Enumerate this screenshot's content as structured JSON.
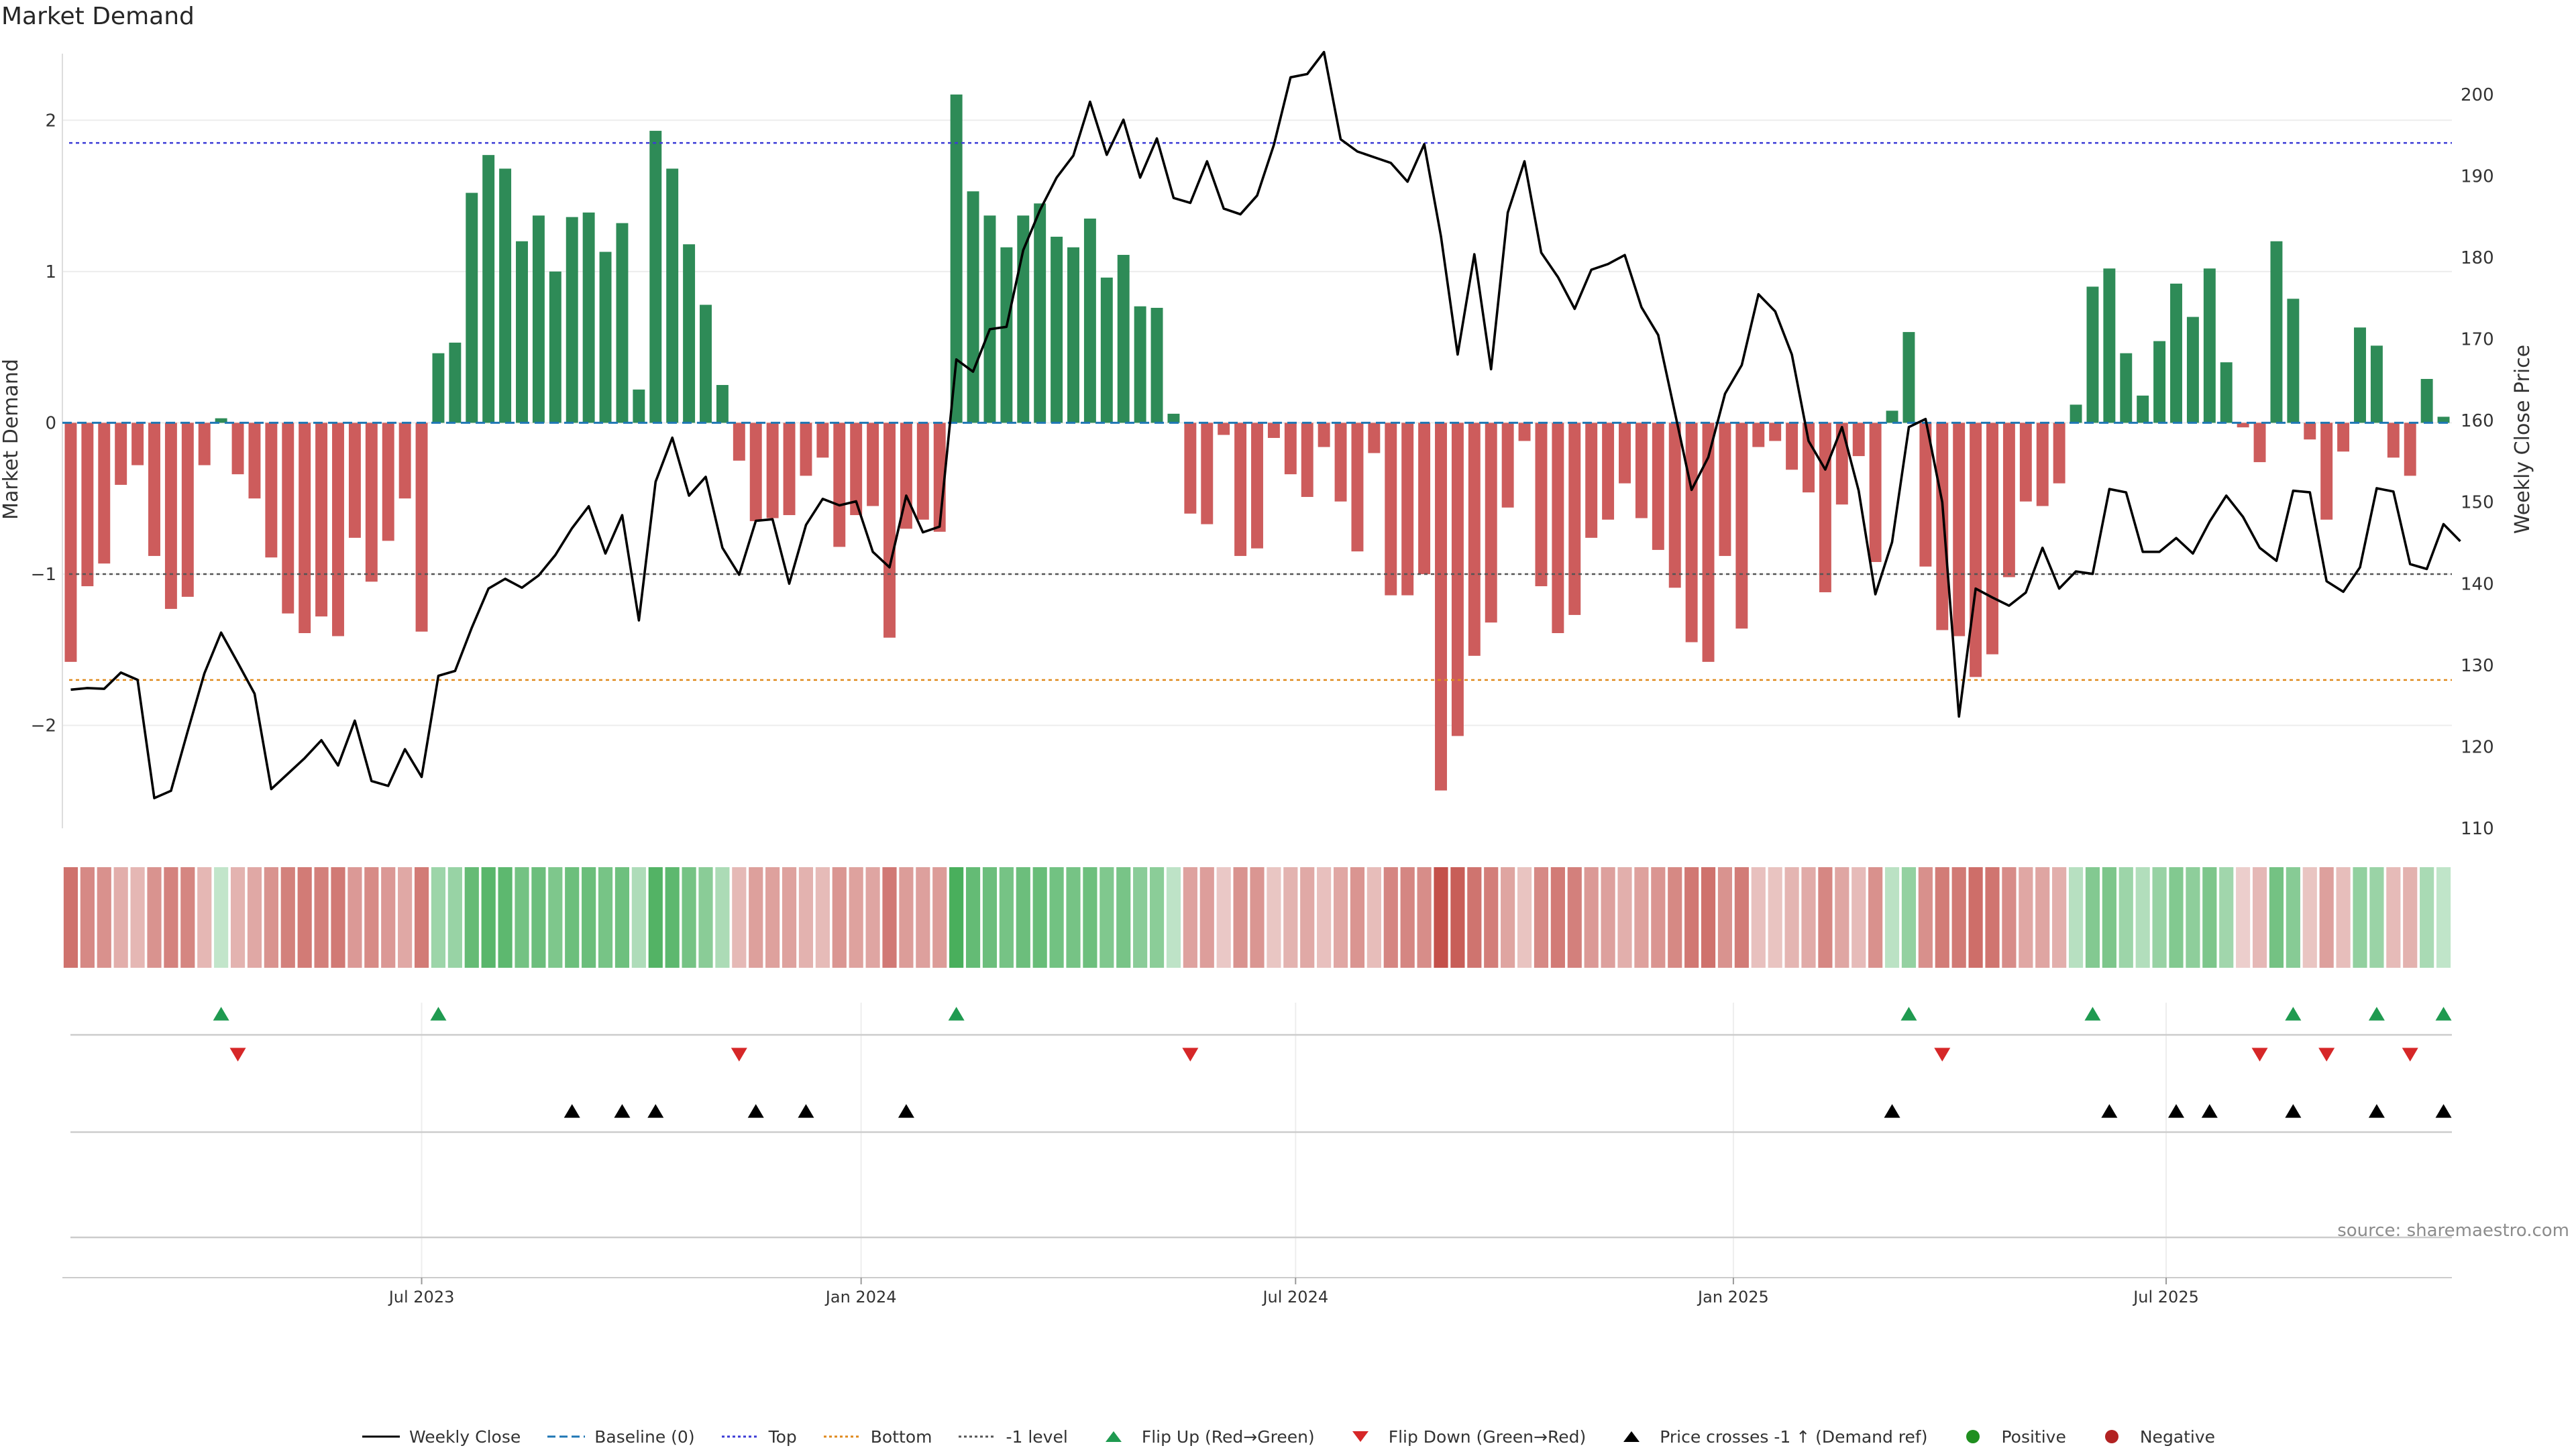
{
  "header": {
    "title": "Market Demand",
    "source": "source: sharemaestro.com"
  },
  "colors": {
    "positive": "#2e8b57",
    "negative": "#cd5c5c",
    "price": "#000000",
    "top_line": "#3b3bd6",
    "bottom_line": "#e08a1e",
    "minus1_line": "#555555",
    "flip_up": "#1f9a50",
    "flip_down": "#d62728",
    "cross": "#000000",
    "legend_positive": "#1f8f1f",
    "legend_negative": "#b22222",
    "baseline": "#1f77b4"
  },
  "legend": [
    {
      "key": "weekly_close",
      "label": "Weekly Close",
      "shape": "line",
      "color": "#000000"
    },
    {
      "key": "baseline",
      "label": "Baseline (0)",
      "shape": "dash",
      "color": "#1f77b4"
    },
    {
      "key": "top",
      "label": "Top",
      "shape": "dot",
      "color": "#3b3bd6"
    },
    {
      "key": "bottom",
      "label": "Bottom",
      "shape": "dot",
      "color": "#e08a1e"
    },
    {
      "key": "minus1",
      "label": "-1 level",
      "shape": "dot",
      "color": "#555555"
    },
    {
      "key": "flip_up",
      "label": "Flip Up (Red→Green)",
      "shape": "tri-up",
      "color": "#1f9a50"
    },
    {
      "key": "flip_down",
      "label": "Flip Down (Green→Red)",
      "shape": "tri-down",
      "color": "#d62728"
    },
    {
      "key": "cross",
      "label": "Price crosses -1 ↑ (Demand ref)",
      "shape": "tri-up",
      "color": "#000000"
    },
    {
      "key": "positive",
      "label": "Positive",
      "shape": "circle",
      "color": "#1f8f1f"
    },
    {
      "key": "negative",
      "label": "Negative",
      "shape": "circle",
      "color": "#b22222"
    }
  ],
  "chart_data": {
    "type": "bar",
    "ylabel": "Market Demand",
    "y2label": "Weekly Close Price",
    "ylim": [
      -2.68,
      2.44
    ],
    "y2lim": [
      110,
      205
    ],
    "yticks": [
      "2",
      "1",
      "0",
      "−1",
      "−2"
    ],
    "y2ticks": [
      "200",
      "190",
      "180",
      "170",
      "160",
      "150",
      "140",
      "130",
      "120",
      "110"
    ],
    "xtick_labels": [
      "Jul 2023",
      "Jan 2024",
      "Jul 2024",
      "Jan 2025",
      "Jul 2025"
    ],
    "xtick_index": [
      21.5,
      47.8,
      73.8,
      100.0,
      125.9
    ],
    "reference_lines": {
      "baseline": 0,
      "top": 1.85,
      "bottom": -1.7,
      "minus1": -1.0
    },
    "demand": [
      -1.58,
      -1.08,
      -0.93,
      -0.41,
      -0.28,
      -0.88,
      -1.23,
      -1.15,
      -0.28,
      0.03,
      -0.34,
      -0.5,
      -0.89,
      -1.26,
      -1.39,
      -1.28,
      -1.41,
      -0.76,
      -1.05,
      -0.78,
      -0.5,
      -1.38,
      0.46,
      0.53,
      1.52,
      1.77,
      1.68,
      1.2,
      1.37,
      1.0,
      1.36,
      1.39,
      1.13,
      1.32,
      0.22,
      1.93,
      1.68,
      1.18,
      0.78,
      0.25,
      -0.25,
      -0.65,
      -0.63,
      -0.61,
      -0.35,
      -0.23,
      -0.82,
      -0.61,
      -0.55,
      -1.42,
      -0.7,
      -0.64,
      -0.72,
      2.17,
      1.53,
      1.37,
      1.16,
      1.37,
      1.45,
      1.23,
      1.16,
      1.35,
      0.96,
      1.11,
      0.77,
      0.76,
      0.06,
      -0.6,
      -0.67,
      -0.08,
      -0.88,
      -0.83,
      -0.1,
      -0.34,
      -0.49,
      -0.16,
      -0.52,
      -0.85,
      -0.2,
      -1.14,
      -1.14,
      -1.0,
      -2.43,
      -2.07,
      -1.54,
      -1.32,
      -0.56,
      -0.12,
      -1.08,
      -1.39,
      -1.27,
      -0.76,
      -0.64,
      -0.4,
      -0.63,
      -0.84,
      -1.09,
      -1.45,
      -1.58,
      -0.88,
      -1.36,
      -0.16,
      -0.12,
      -0.31,
      -0.46,
      -1.12,
      -0.54,
      -0.22,
      -0.92,
      0.08,
      0.6,
      -0.95,
      -1.37,
      -1.41,
      -1.68,
      -1.53,
      -1.02,
      -0.52,
      -0.55,
      -0.4,
      0.12,
      0.9,
      1.02,
      0.46,
      0.18,
      0.54,
      0.92,
      0.7,
      1.02,
      0.4,
      -0.03,
      -0.26,
      1.2,
      0.82,
      -0.11,
      -0.64,
      -0.19,
      0.63,
      0.51,
      -0.23,
      -0.35,
      0.29,
      0.04
    ],
    "close": [
      127,
      127.2,
      127.1,
      129.1,
      128.2,
      113.7,
      114.6,
      121.9,
      129,
      134,
      130.3,
      126.5,
      114.8,
      116.7,
      118.6,
      120.8,
      117.7,
      123.2,
      115.8,
      115.2,
      119.7,
      116.3,
      128.7,
      129.3,
      134.6,
      139.4,
      140.6,
      139.5,
      141,
      143.5,
      146.8,
      149.5,
      143.7,
      148.4,
      135.5,
      152.5,
      157.9,
      150.8,
      153.1,
      144.4,
      141.1,
      147.7,
      147.9,
      140,
      147.2,
      150.4,
      149.6,
      150.1,
      143.9,
      142,
      150.8,
      146.3,
      147,
      167.5,
      166,
      171.2,
      171.5,
      180.9,
      185.8,
      189.8,
      192.5,
      199.1,
      192.6,
      196.9,
      189.8,
      194.6,
      187.3,
      186.7,
      191.8,
      186,
      185.3,
      187.6,
      193.8,
      202.1,
      202.5,
      205.2,
      194.5,
      193,
      192.3,
      191.6,
      189.3,
      193.9,
      182.6,
      168.1,
      180.4,
      166.3,
      185.5,
      191.8,
      180.6,
      177.6,
      173.7,
      178.5,
      179.2,
      180.3,
      173.9,
      170.5,
      161,
      151.5,
      155.5,
      163.3,
      166.8,
      175.5,
      173.4,
      168.1,
      157.5,
      154,
      159.2,
      151.4,
      138.7,
      145.1,
      159.2,
      160.2,
      150,
      123.7,
      139.4,
      138.3,
      137.3,
      138.9,
      144.4,
      139.4,
      141.5,
      141.2,
      151.6,
      151.2,
      143.9,
      143.9,
      145.6,
      143.7,
      147.6,
      150.8,
      148.2,
      144.4,
      142.8,
      151.4,
      151.2,
      140.3,
      139,
      142,
      151.7,
      151.3,
      142.4,
      141.8,
      147.3,
      145.2
    ],
    "flip_up_index": [
      9,
      22,
      53,
      110,
      121,
      133,
      138,
      142
    ],
    "flip_down_index": [
      10,
      40,
      67,
      112,
      131,
      135,
      140
    ],
    "cross_up_index": [
      30,
      33,
      35,
      41,
      44,
      50,
      109,
      122,
      126,
      128,
      133,
      138,
      142
    ]
  }
}
